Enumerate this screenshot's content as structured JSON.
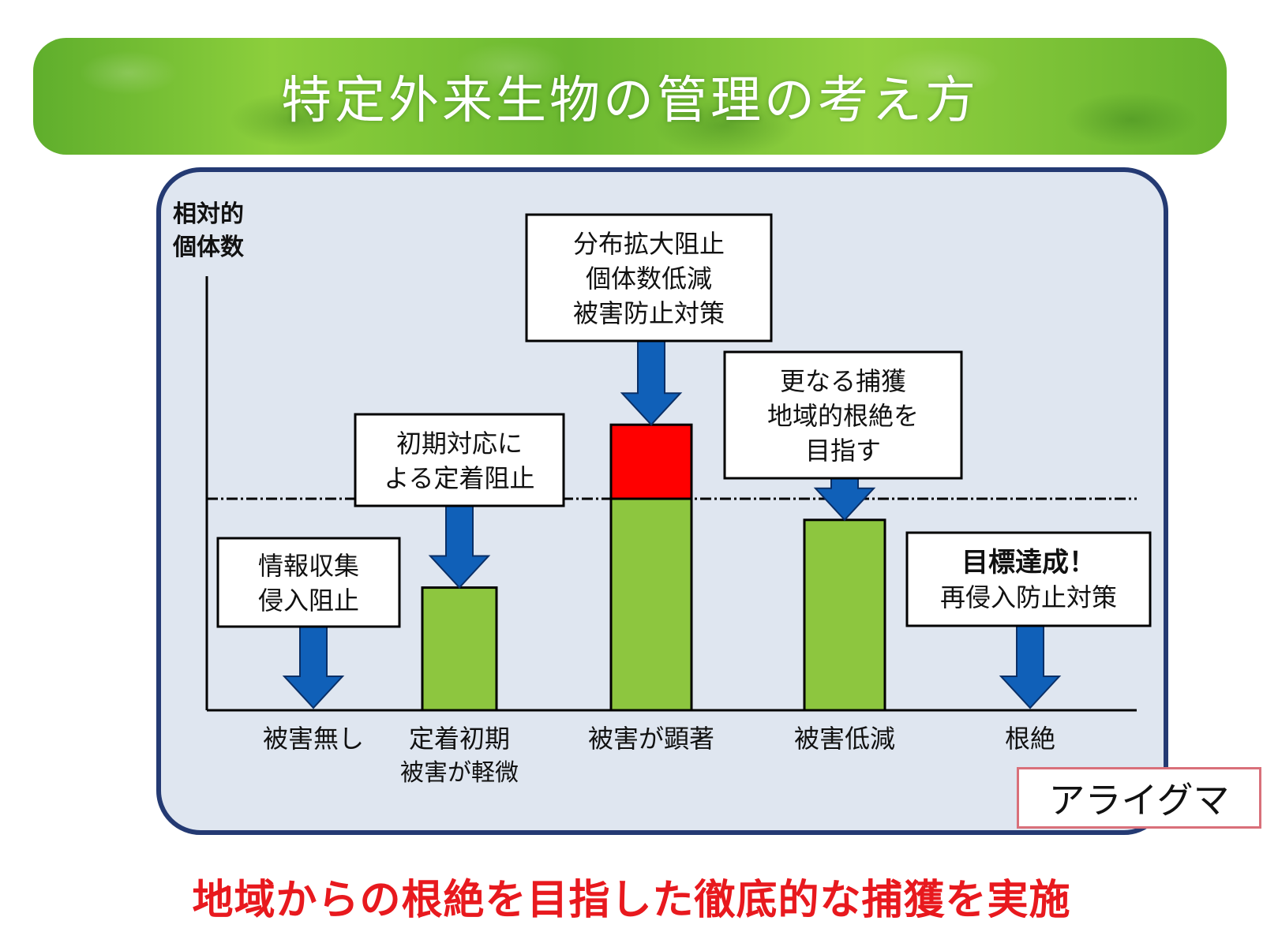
{
  "title": "特定外来生物の管理の考え方",
  "y_axis_label": [
    "相対的",
    "個体数"
  ],
  "stages": [
    {
      "label": [
        "被害無し"
      ],
      "level": 0,
      "callout": [
        "情報収集",
        "侵入阻止"
      ],
      "callout_bold_first": false
    },
    {
      "label": [
        "定着初期",
        "被害が軽微"
      ],
      "level": 0.58,
      "callout": [
        "初期対応に",
        "よる定着阻止"
      ],
      "callout_bold_first": false
    },
    {
      "label": [
        "被害が顕著"
      ],
      "level": 1.35,
      "callout": [
        "分布拡大阻止",
        "個体数低減",
        "被害防止対策"
      ],
      "callout_bold_first": false
    },
    {
      "label": [
        "被害低減"
      ],
      "level": 0.9,
      "callout": [
        "更なる捕獲",
        "地域的根絶を",
        "目指す"
      ],
      "callout_bold_first": false
    },
    {
      "label": [
        "根絶"
      ],
      "level": 0,
      "callout": [
        "目標達成！",
        "再侵入防止対策"
      ],
      "callout_bold_first": true
    }
  ],
  "threshold_level": 1.0,
  "species": "アライグマ",
  "conclusion": "地域からの根絶を目指した徹底的な捕獲を実施",
  "colors": {
    "bar": "#8dc63f",
    "excess": "#ff0000",
    "arrow": "#1060b8",
    "panel": "#dfe6f0",
    "panel_border": "#243a73",
    "conclusion": "#e8191e"
  }
}
